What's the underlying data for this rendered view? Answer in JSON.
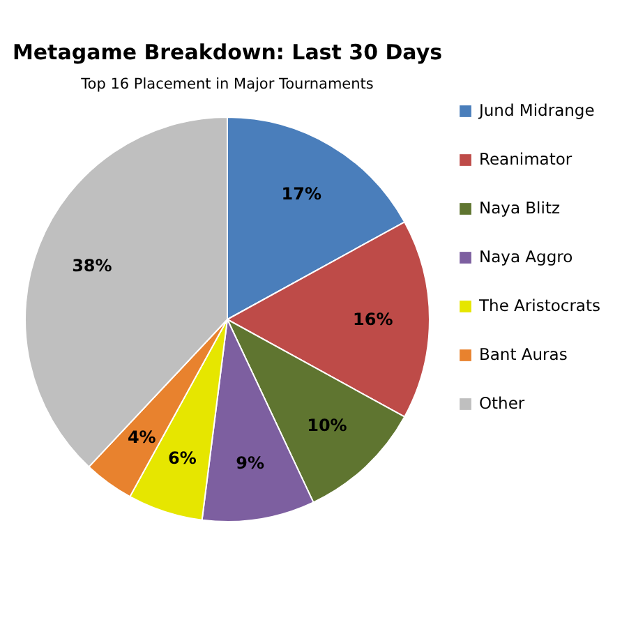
{
  "chart_data": {
    "type": "pie",
    "title": "Metagame Breakdown: Last 30 Days",
    "subtitle": "Top 16 Placement in Major Tournaments",
    "categories": [
      "Jund Midrange",
      "Reanimator",
      "Naya Blitz",
      "Naya Aggro",
      "The Aristocrats",
      "Bant Auras",
      "Other"
    ],
    "values": [
      17,
      16,
      10,
      9,
      6,
      4,
      38
    ],
    "colors": [
      "#4a7ebb",
      "#be4b48",
      "#5f7530",
      "#7d5fa0",
      "#e6e600",
      "#e8822e",
      "#bfbfbf"
    ],
    "value_labels": [
      "17%",
      "16%",
      "10%",
      "9%",
      "6%",
      "4%",
      "38%"
    ],
    "legend": "right"
  }
}
